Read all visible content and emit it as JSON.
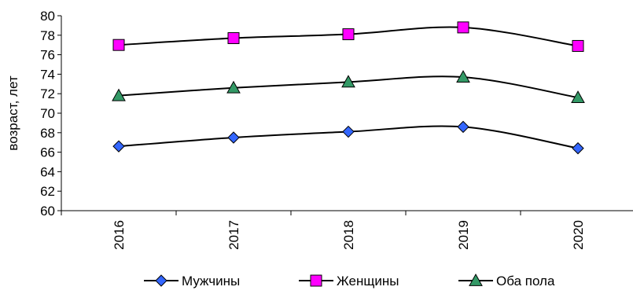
{
  "chart_data": {
    "type": "line",
    "ylabel": "возраст, лет",
    "xlabel": "",
    "ylim": [
      60,
      80
    ],
    "ytick_step": 2,
    "categories": [
      "2016",
      "2017",
      "2018",
      "2019",
      "2020"
    ],
    "grid": false,
    "legend": "bottom",
    "series": [
      {
        "name": "Мужчины",
        "values": [
          66.6,
          67.5,
          68.1,
          68.6,
          66.4
        ],
        "marker": "diamond",
        "color": "#3366FF"
      },
      {
        "name": "Женщины",
        "values": [
          77.0,
          77.7,
          78.1,
          78.8,
          76.9
        ],
        "marker": "square",
        "color": "#FF00FF"
      },
      {
        "name": "Оба пола",
        "values": [
          71.8,
          72.6,
          73.2,
          73.7,
          71.6
        ],
        "marker": "triangle",
        "color": "#339966"
      }
    ]
  }
}
